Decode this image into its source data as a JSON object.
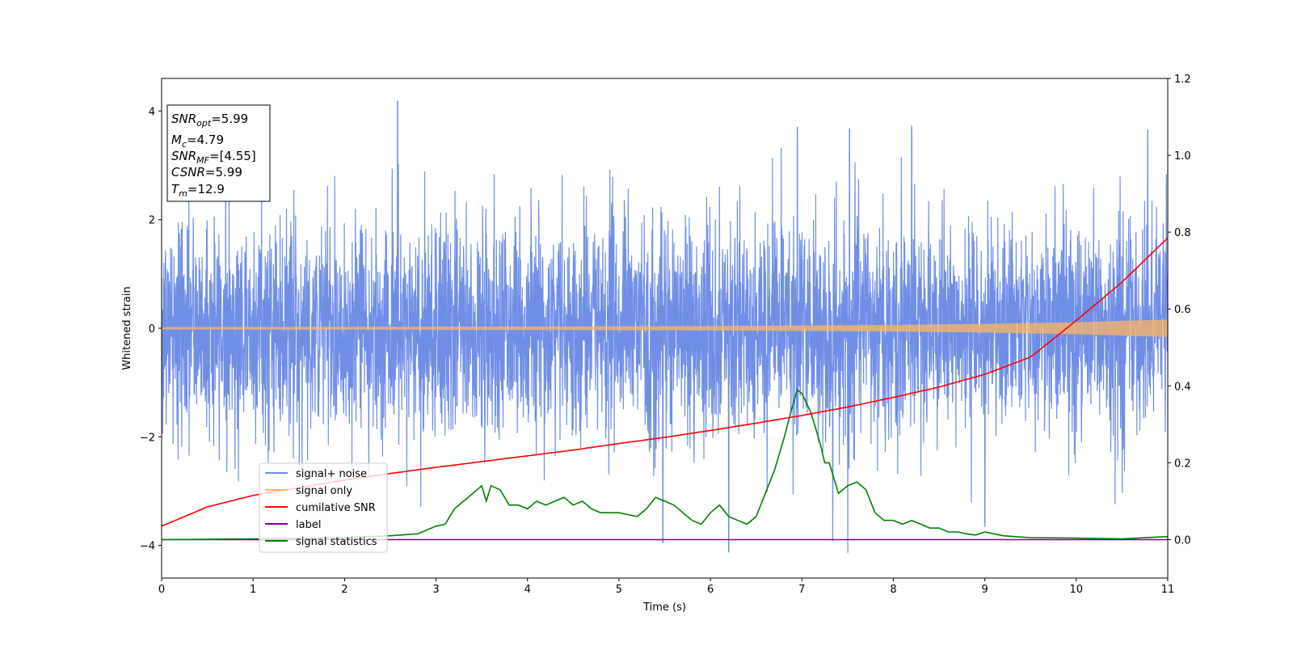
{
  "chart_data": {
    "type": "line",
    "xlabel": "Time (s)",
    "ylabel": "Whitened strain",
    "xlim": [
      0,
      11
    ],
    "ylim": [
      -4.6,
      4.6
    ],
    "y2lim": [
      -0.1,
      1.2
    ],
    "xticks": [
      "0",
      "1",
      "2",
      "3",
      "4",
      "5",
      "6",
      "7",
      "8",
      "9",
      "10",
      "11"
    ],
    "yticks": [
      "−4",
      "−2",
      "0",
      "2",
      "4"
    ],
    "y2ticks": [
      "0.0",
      "0.2",
      "0.4",
      "0.6",
      "0.8",
      "1.0",
      "1.2"
    ],
    "grid": false,
    "legend_position": "lower-left",
    "info_box": {
      "snr_opt": {
        "base": "SNR",
        "sub": "opt",
        "value": "=5.99"
      },
      "mc": {
        "base": "M",
        "sub": "c",
        "value": "=4.79"
      },
      "snr_mf": {
        "base": "SNR",
        "sub": "MF",
        "value": "=[4.55]"
      },
      "csnr": {
        "base": "CSNR",
        "sub": "",
        "value": "=5.99"
      },
      "tm": {
        "base": "T",
        "sub": "m",
        "value": "=12.9"
      }
    },
    "series": [
      {
        "name": "signal+ noise",
        "color": "#6f8fe6",
        "axis": "left",
        "description_stats": {
          "mean": 0.0,
          "std": 1.0,
          "max_peak": 4.18,
          "min_peak": -4.12
        }
      },
      {
        "name": "signal only",
        "color": "#ffb562",
        "axis": "left",
        "envelope": {
          "x": [
            0,
            2,
            4,
            6,
            8,
            9,
            10,
            11
          ],
          "amplitude": [
            0.02,
            0.025,
            0.03,
            0.04,
            0.06,
            0.08,
            0.11,
            0.16
          ]
        }
      },
      {
        "name": "cumilative SNR",
        "color": "#ff0000",
        "axis": "right",
        "x": [
          0,
          0.5,
          1,
          1.5,
          2,
          2.5,
          3,
          3.5,
          4,
          4.5,
          5,
          5.5,
          6,
          6.5,
          7,
          7.5,
          8,
          8.5,
          9,
          9.5,
          10,
          10.5,
          11
        ],
        "y": [
          0.035,
          0.085,
          0.115,
          0.135,
          0.155,
          0.172,
          0.188,
          0.203,
          0.218,
          0.233,
          0.25,
          0.266,
          0.284,
          0.303,
          0.323,
          0.345,
          0.37,
          0.397,
          0.43,
          0.475,
          0.57,
          0.67,
          0.785
        ]
      },
      {
        "name": "label",
        "color": "#800080",
        "axis": "right",
        "x": [
          0,
          11
        ],
        "y": [
          0.0,
          0.0
        ]
      },
      {
        "name": "signal statistics",
        "color": "#008000",
        "axis": "right",
        "x": [
          0,
          1,
          2,
          2.5,
          2.8,
          3.0,
          3.1,
          3.2,
          3.35,
          3.45,
          3.5,
          3.55,
          3.6,
          3.7,
          3.8,
          3.9,
          4.0,
          4.1,
          4.2,
          4.3,
          4.4,
          4.5,
          4.6,
          4.7,
          4.8,
          5.0,
          5.2,
          5.3,
          5.4,
          5.5,
          5.6,
          5.7,
          5.8,
          5.9,
          6.0,
          6.1,
          6.2,
          6.3,
          6.4,
          6.5,
          6.6,
          6.7,
          6.8,
          6.9,
          6.95,
          7.0,
          7.1,
          7.2,
          7.25,
          7.3,
          7.4,
          7.5,
          7.6,
          7.7,
          7.8,
          7.9,
          8.0,
          8.1,
          8.2,
          8.3,
          8.4,
          8.5,
          8.6,
          8.7,
          8.8,
          8.9,
          9.0,
          9.2,
          9.5,
          10.0,
          10.5,
          11.0
        ],
        "y": [
          0.0,
          0.002,
          0.005,
          0.01,
          0.015,
          0.035,
          0.04,
          0.08,
          0.11,
          0.13,
          0.14,
          0.1,
          0.14,
          0.13,
          0.09,
          0.09,
          0.08,
          0.1,
          0.09,
          0.1,
          0.11,
          0.09,
          0.1,
          0.08,
          0.07,
          0.07,
          0.06,
          0.08,
          0.11,
          0.1,
          0.09,
          0.07,
          0.05,
          0.04,
          0.07,
          0.09,
          0.06,
          0.05,
          0.04,
          0.06,
          0.12,
          0.18,
          0.26,
          0.35,
          0.39,
          0.38,
          0.33,
          0.25,
          0.2,
          0.2,
          0.12,
          0.14,
          0.15,
          0.13,
          0.07,
          0.05,
          0.05,
          0.04,
          0.05,
          0.04,
          0.03,
          0.03,
          0.02,
          0.02,
          0.015,
          0.012,
          0.02,
          0.01,
          0.005,
          0.004,
          0.002,
          0.008
        ]
      }
    ]
  }
}
